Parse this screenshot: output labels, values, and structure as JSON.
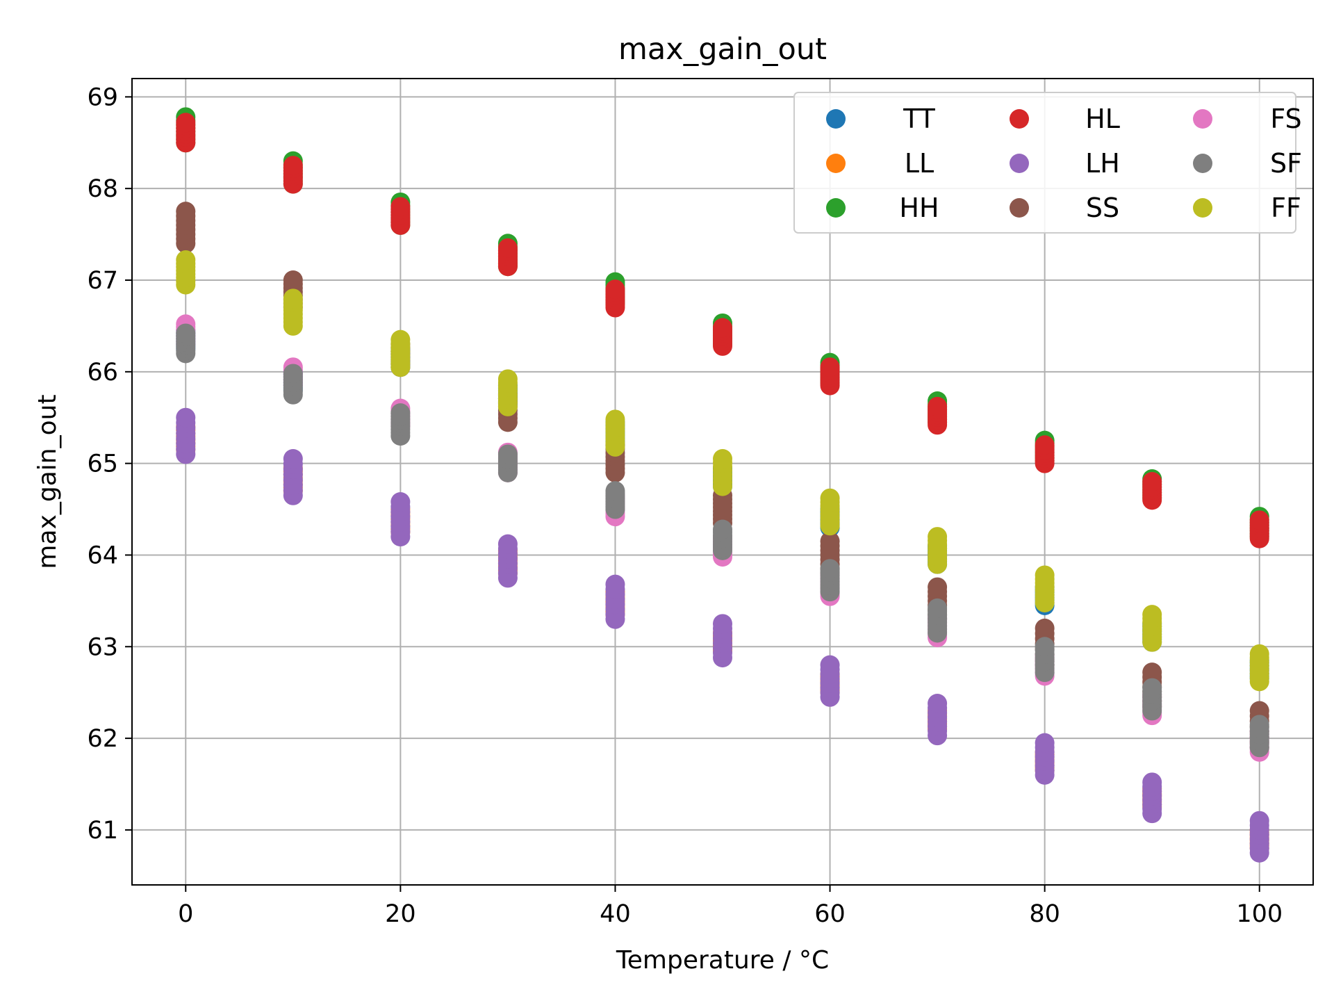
{
  "chart_data": {
    "type": "scatter",
    "title": "max_gain_out",
    "xlabel": "Temperature / °C",
    "ylabel": "max_gain_out",
    "xlim": [
      -5,
      105
    ],
    "ylim": [
      60.4,
      69.2
    ],
    "xticks": [
      0,
      20,
      40,
      60,
      80,
      100
    ],
    "yticks": [
      61,
      62,
      63,
      64,
      65,
      66,
      67,
      68,
      69
    ],
    "grid": true,
    "legend_position": "top-right",
    "legend_columns": 3,
    "x": [
      0,
      10,
      20,
      30,
      40,
      50,
      60,
      70,
      80,
      90,
      100
    ],
    "series": [
      {
        "name": "TT",
        "color": "#1f77b4",
        "ranges": [
          [
            66.25,
            66.45
          ],
          [
            65.8,
            66.0
          ],
          [
            66.05,
            66.25
          ],
          [
            65.65,
            65.85
          ],
          [
            65.2,
            65.45
          ],
          [
            64.75,
            64.95
          ],
          [
            64.3,
            64.5
          ],
          [
            63.9,
            64.1
          ],
          [
            63.45,
            63.65
          ],
          [
            63.05,
            63.25
          ],
          [
            62.65,
            62.85
          ]
        ]
      },
      {
        "name": "LL",
        "color": "#ff7f0e",
        "ranges": [
          [
            65.15,
            65.4
          ],
          [
            64.7,
            64.95
          ],
          [
            64.25,
            64.5
          ],
          [
            63.8,
            64.05
          ],
          [
            63.35,
            63.6
          ],
          [
            62.95,
            63.15
          ],
          [
            62.5,
            62.7
          ],
          [
            62.1,
            62.3
          ],
          [
            61.65,
            61.85
          ],
          [
            61.25,
            61.45
          ],
          [
            60.8,
            61.0
          ]
        ]
      },
      {
        "name": "HH",
        "color": "#2ca02c",
        "ranges": [
          [
            68.5,
            68.78
          ],
          [
            68.05,
            68.3
          ],
          [
            67.6,
            67.85
          ],
          [
            67.15,
            67.4
          ],
          [
            66.75,
            66.98
          ],
          [
            66.3,
            66.53
          ],
          [
            65.88,
            66.1
          ],
          [
            65.45,
            65.68
          ],
          [
            65.03,
            65.25
          ],
          [
            64.62,
            64.83
          ],
          [
            64.2,
            64.42
          ]
        ]
      },
      {
        "name": "HL",
        "color": "#d62728",
        "ranges": [
          [
            68.5,
            68.72
          ],
          [
            68.05,
            68.25
          ],
          [
            67.6,
            67.8
          ],
          [
            67.15,
            67.35
          ],
          [
            66.7,
            66.9
          ],
          [
            66.28,
            66.48
          ],
          [
            65.85,
            66.05
          ],
          [
            65.42,
            65.62
          ],
          [
            65.0,
            65.2
          ],
          [
            64.6,
            64.8
          ],
          [
            64.18,
            64.38
          ]
        ]
      },
      {
        "name": "LH",
        "color": "#9467bd",
        "ranges": [
          [
            65.1,
            65.5
          ],
          [
            64.65,
            65.05
          ],
          [
            64.2,
            64.58
          ],
          [
            63.75,
            64.12
          ],
          [
            63.3,
            63.68
          ],
          [
            62.88,
            63.25
          ],
          [
            62.45,
            62.8
          ],
          [
            62.03,
            62.38
          ],
          [
            61.6,
            61.95
          ],
          [
            61.18,
            61.52
          ],
          [
            60.75,
            61.1
          ]
        ]
      },
      {
        "name": "SS",
        "color": "#8c564b",
        "ranges": [
          [
            67.4,
            67.75
          ],
          [
            66.7,
            67.0
          ],
          [
            66.05,
            66.3
          ],
          [
            65.45,
            65.75
          ],
          [
            64.9,
            65.2
          ],
          [
            64.35,
            64.65
          ],
          [
            63.8,
            64.15
          ],
          [
            63.3,
            63.65
          ],
          [
            62.8,
            63.2
          ],
          [
            62.35,
            62.72
          ],
          [
            61.9,
            62.3
          ]
        ]
      },
      {
        "name": "FS",
        "color": "#e377c2",
        "ranges": [
          [
            66.3,
            66.52
          ],
          [
            65.85,
            66.05
          ],
          [
            65.4,
            65.6
          ],
          [
            64.9,
            65.12
          ],
          [
            64.42,
            64.65
          ],
          [
            63.98,
            64.2
          ],
          [
            63.55,
            63.78
          ],
          [
            63.1,
            63.32
          ],
          [
            62.68,
            62.9
          ],
          [
            62.25,
            62.48
          ],
          [
            61.85,
            62.08
          ]
        ]
      },
      {
        "name": "SF",
        "color": "#7f7f7f",
        "ranges": [
          [
            66.2,
            66.42
          ],
          [
            65.75,
            65.98
          ],
          [
            65.3,
            65.55
          ],
          [
            64.9,
            65.1
          ],
          [
            64.5,
            64.7
          ],
          [
            64.05,
            64.28
          ],
          [
            63.6,
            63.85
          ],
          [
            63.15,
            63.42
          ],
          [
            62.72,
            63.0
          ],
          [
            62.3,
            62.55
          ],
          [
            61.9,
            62.15
          ]
        ]
      },
      {
        "name": "FF",
        "color": "#bcbd22",
        "ranges": [
          [
            66.95,
            67.22
          ],
          [
            66.5,
            66.8
          ],
          [
            66.05,
            66.35
          ],
          [
            65.62,
            65.92
          ],
          [
            65.18,
            65.48
          ],
          [
            64.75,
            65.05
          ],
          [
            64.32,
            64.62
          ],
          [
            63.9,
            64.2
          ],
          [
            63.48,
            63.78
          ],
          [
            63.05,
            63.35
          ],
          [
            62.62,
            62.92
          ]
        ]
      }
    ]
  }
}
